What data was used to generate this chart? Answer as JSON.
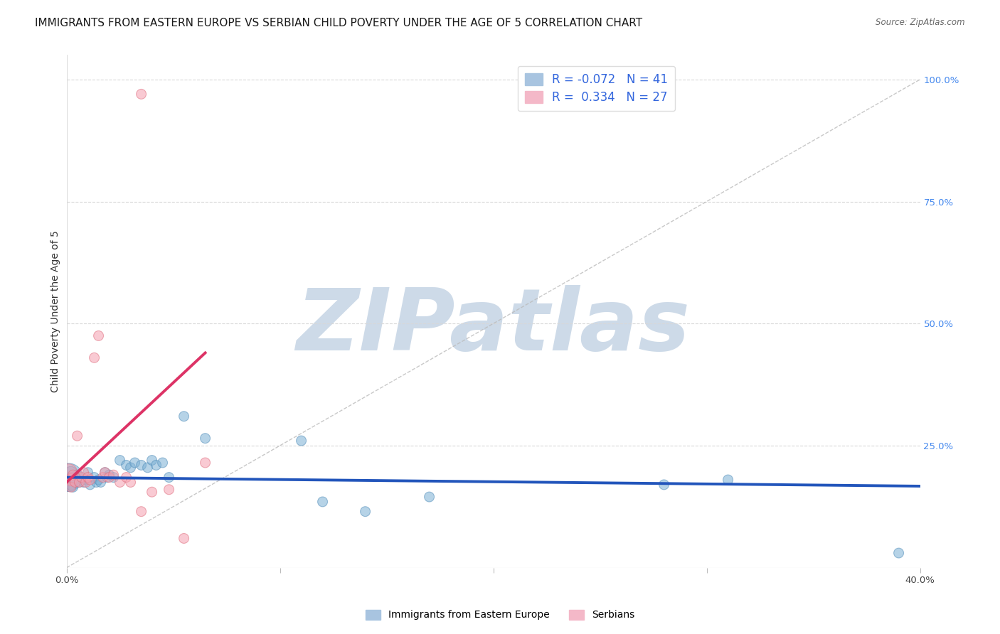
{
  "title": "IMMIGRANTS FROM EASTERN EUROPE VS SERBIAN CHILD POVERTY UNDER THE AGE OF 5 CORRELATION CHART",
  "source": "Source: ZipAtlas.com",
  "ylabel": "Child Poverty Under the Age of 5",
  "xlim": [
    0.0,
    0.4
  ],
  "ylim": [
    0.0,
    1.05
  ],
  "blue_color": "#7bafd4",
  "blue_edge": "#5590bb",
  "pink_color": "#f5a0b0",
  "pink_edge": "#e07080",
  "blue_scatter": {
    "x": [
      0.001,
      0.001,
      0.002,
      0.002,
      0.003,
      0.003,
      0.004,
      0.005,
      0.006,
      0.007,
      0.008,
      0.009,
      0.01,
      0.011,
      0.013,
      0.014,
      0.015,
      0.016,
      0.018,
      0.019,
      0.02,
      0.022,
      0.025,
      0.028,
      0.03,
      0.032,
      0.035,
      0.038,
      0.04,
      0.042,
      0.045,
      0.048,
      0.055,
      0.065,
      0.11,
      0.12,
      0.14,
      0.17,
      0.28,
      0.31,
      0.39
    ],
    "y": [
      0.185,
      0.175,
      0.195,
      0.17,
      0.185,
      0.165,
      0.18,
      0.19,
      0.175,
      0.185,
      0.175,
      0.18,
      0.195,
      0.17,
      0.185,
      0.175,
      0.18,
      0.175,
      0.195,
      0.185,
      0.19,
      0.185,
      0.22,
      0.21,
      0.205,
      0.215,
      0.21,
      0.205,
      0.22,
      0.21,
      0.215,
      0.185,
      0.31,
      0.265,
      0.26,
      0.135,
      0.115,
      0.145,
      0.17,
      0.18,
      0.03
    ],
    "sizes": [
      800,
      350,
      150,
      120,
      120,
      100,
      100,
      100,
      100,
      100,
      100,
      100,
      100,
      100,
      100,
      100,
      100,
      100,
      100,
      100,
      100,
      100,
      100,
      100,
      100,
      100,
      100,
      100,
      100,
      100,
      100,
      100,
      100,
      100,
      100,
      100,
      100,
      100,
      100,
      100,
      100
    ]
  },
  "pink_scatter": {
    "x": [
      0.001,
      0.002,
      0.002,
      0.003,
      0.004,
      0.005,
      0.006,
      0.007,
      0.008,
      0.009,
      0.01,
      0.011,
      0.013,
      0.015,
      0.017,
      0.018,
      0.02,
      0.022,
      0.025,
      0.028,
      0.03,
      0.035,
      0.04,
      0.048,
      0.055,
      0.065,
      0.035
    ],
    "y": [
      0.195,
      0.18,
      0.165,
      0.19,
      0.175,
      0.27,
      0.175,
      0.185,
      0.195,
      0.175,
      0.185,
      0.18,
      0.43,
      0.475,
      0.185,
      0.195,
      0.185,
      0.19,
      0.175,
      0.185,
      0.175,
      0.115,
      0.155,
      0.16,
      0.06,
      0.215,
      0.97
    ],
    "sizes": [
      300,
      150,
      100,
      100,
      100,
      100,
      100,
      100,
      100,
      100,
      100,
      100,
      100,
      100,
      100,
      100,
      100,
      100,
      100,
      100,
      100,
      100,
      100,
      100,
      100,
      100,
      100
    ]
  },
  "blue_line": {
    "x": [
      0.0,
      0.4
    ],
    "y": [
      0.185,
      0.167
    ]
  },
  "pink_line": {
    "x": [
      0.0,
      0.065
    ],
    "y": [
      0.175,
      0.44
    ]
  },
  "diag_line": {
    "x": [
      0.0,
      0.4
    ],
    "y": [
      0.0,
      1.0
    ]
  },
  "background_color": "#ffffff",
  "grid_color": "#d8d8d8",
  "watermark_text": "ZIPatlas",
  "watermark_color": "#cddae8",
  "title_fontsize": 11,
  "axis_fontsize": 10,
  "tick_fontsize": 9.5,
  "right_tick_color": "#4488ee"
}
